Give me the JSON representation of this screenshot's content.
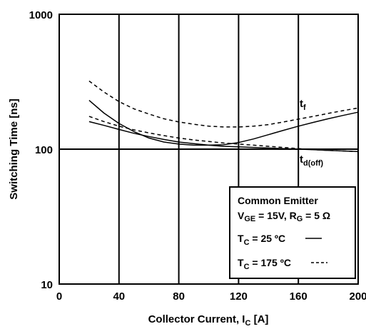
{
  "chart_data": {
    "type": "line",
    "xlabel": {
      "main": "Collector Current, I",
      "sub": "C",
      "tail": " [A]"
    },
    "ylabel": "Switching Time [ns]",
    "xlim": [
      0,
      200
    ],
    "ylim": [
      10,
      1000
    ],
    "yscale": "log",
    "x_ticks": [
      0,
      40,
      80,
      120,
      160,
      200
    ],
    "y_ticks": [
      10,
      100,
      1000
    ],
    "grid": "vertical lines at x ticks",
    "legend": {
      "placement": "bottom-right",
      "title": "Common Emitter",
      "cond_vge": "V",
      "cond_vge_sub": "GE",
      "cond_vge_val": " = 15V, R",
      "cond_rg_sub": "G",
      "cond_rg_val": " = 5 Ω",
      "t25_main": "T",
      "t25_sub": "C",
      "t25_val": " = 25 ºC",
      "t175_main": "T",
      "t175_sub": "C",
      "t175_val": " = 175 ºC"
    },
    "labels": {
      "tf_main": "t",
      "tf_sub": "f",
      "tdoff_main": "t",
      "tdoff_sub": "d(off)"
    },
    "series": [
      {
        "group": "t_f",
        "temp": "25",
        "style": "solid",
        "points": [
          [
            20,
            230
          ],
          [
            30,
            185
          ],
          [
            40,
            155
          ],
          [
            50,
            135
          ],
          [
            60,
            121
          ],
          [
            70,
            113
          ],
          [
            80,
            109
          ],
          [
            90,
            107
          ],
          [
            100,
            107
          ],
          [
            110,
            108
          ],
          [
            120,
            112
          ],
          [
            130,
            119
          ],
          [
            140,
            128
          ],
          [
            150,
            138
          ],
          [
            160,
            148
          ],
          [
            170,
            158
          ],
          [
            180,
            168
          ],
          [
            190,
            178
          ],
          [
            200,
            188
          ]
        ]
      },
      {
        "group": "t_d(off)",
        "temp": "25",
        "style": "solid",
        "points": [
          [
            20,
            160
          ],
          [
            30,
            150
          ],
          [
            40,
            140
          ],
          [
            50,
            131
          ],
          [
            60,
            124
          ],
          [
            70,
            118
          ],
          [
            80,
            113
          ],
          [
            90,
            110
          ],
          [
            100,
            107
          ],
          [
            110,
            105
          ],
          [
            120,
            104
          ],
          [
            130,
            103
          ],
          [
            140,
            102
          ],
          [
            150,
            101
          ],
          [
            160,
            100
          ],
          [
            170,
            99
          ],
          [
            180,
            98
          ],
          [
            190,
            97
          ],
          [
            200,
            96
          ]
        ]
      },
      {
        "group": "t_f",
        "temp": "175",
        "style": "dashed",
        "points": [
          [
            20,
            320
          ],
          [
            30,
            265
          ],
          [
            40,
            225
          ],
          [
            50,
            199
          ],
          [
            60,
            182
          ],
          [
            70,
            168
          ],
          [
            80,
            159
          ],
          [
            90,
            153
          ],
          [
            100,
            148
          ],
          [
            110,
            146
          ],
          [
            120,
            146
          ],
          [
            130,
            148
          ],
          [
            140,
            152
          ],
          [
            150,
            159
          ],
          [
            160,
            167
          ],
          [
            170,
            175
          ],
          [
            180,
            184
          ],
          [
            190,
            193
          ],
          [
            200,
            202
          ]
        ]
      },
      {
        "group": "t_d(off)",
        "temp": "175",
        "style": "dashed",
        "points": [
          [
            20,
            175
          ],
          [
            30,
            160
          ],
          [
            40,
            148
          ],
          [
            50,
            139
          ],
          [
            60,
            132
          ],
          [
            70,
            126
          ],
          [
            80,
            121
          ],
          [
            90,
            117
          ],
          [
            100,
            114
          ],
          [
            110,
            111
          ],
          [
            120,
            109
          ],
          [
            130,
            107
          ],
          [
            140,
            105
          ],
          [
            150,
            103
          ],
          [
            160,
            101
          ],
          [
            170,
            99
          ],
          [
            180,
            98
          ],
          [
            190,
            97
          ],
          [
            200,
            96
          ]
        ]
      }
    ]
  }
}
